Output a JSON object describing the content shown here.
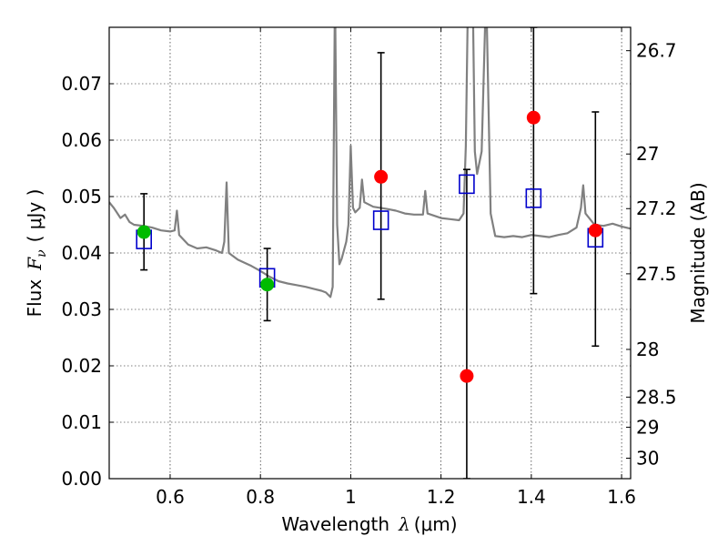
{
  "chart_data": {
    "type": "scatter",
    "xlabel": "Wavelength",
    "xlabel_symbol": "λ",
    "xlabel_unit": "(μm)",
    "ylabel": "Flux",
    "ylabel_symbol": "F",
    "ylabel_subscript": "ν",
    "ylabel_unit": "( μJy )",
    "y2label": "Magnitude (AB)",
    "xlim": [
      0.465,
      1.62
    ],
    "ylim": [
      0.0,
      0.08
    ],
    "x_ticks": [
      "0.6",
      "0.8",
      "1",
      "1.2",
      "1.4",
      "1.6"
    ],
    "y_ticks": [
      "0.00",
      "0.01",
      "0.02",
      "0.03",
      "0.04",
      "0.05",
      "0.06",
      "0.07"
    ],
    "y2_ticks": [
      "26.7",
      "27",
      "27.2",
      "27.5",
      "28",
      "28.5",
      "29",
      "30"
    ],
    "grid": true,
    "colors": {
      "spectrum": "#808080",
      "model_points": "#0000cc",
      "detections": "#00bb00",
      "nondetections": "#ff0000",
      "errorbars": "#000000"
    },
    "series": [
      {
        "kind": "spectrum",
        "points": [
          [
            0.465,
            0.049
          ],
          [
            0.475,
            0.048
          ],
          [
            0.49,
            0.0462
          ],
          [
            0.5,
            0.0468
          ],
          [
            0.51,
            0.0455
          ],
          [
            0.52,
            0.045
          ],
          [
            0.54,
            0.0448
          ],
          [
            0.56,
            0.0445
          ],
          [
            0.58,
            0.044
          ],
          [
            0.6,
            0.0438
          ],
          [
            0.61,
            0.044
          ],
          [
            0.615,
            0.0475
          ],
          [
            0.62,
            0.0432
          ],
          [
            0.64,
            0.0415
          ],
          [
            0.66,
            0.0408
          ],
          [
            0.68,
            0.041
          ],
          [
            0.7,
            0.0405
          ],
          [
            0.715,
            0.04
          ],
          [
            0.72,
            0.042
          ],
          [
            0.725,
            0.0525
          ],
          [
            0.73,
            0.04
          ],
          [
            0.75,
            0.0388
          ],
          [
            0.78,
            0.0377
          ],
          [
            0.8,
            0.0368
          ],
          [
            0.82,
            0.0358
          ],
          [
            0.84,
            0.035
          ],
          [
            0.86,
            0.0346
          ],
          [
            0.88,
            0.0343
          ],
          [
            0.9,
            0.034
          ],
          [
            0.92,
            0.0336
          ],
          [
            0.935,
            0.0333
          ],
          [
            0.945,
            0.033
          ],
          [
            0.955,
            0.0322
          ],
          [
            0.96,
            0.034
          ],
          [
            0.965,
            0.087
          ],
          [
            0.97,
            0.045
          ],
          [
            0.975,
            0.038
          ],
          [
            0.98,
            0.039
          ],
          [
            0.99,
            0.042
          ],
          [
            0.995,
            0.045
          ],
          [
            1.0,
            0.059
          ],
          [
            1.005,
            0.048
          ],
          [
            1.01,
            0.0472
          ],
          [
            1.02,
            0.048
          ],
          [
            1.025,
            0.053
          ],
          [
            1.03,
            0.049
          ],
          [
            1.05,
            0.0482
          ],
          [
            1.08,
            0.0478
          ],
          [
            1.1,
            0.0475
          ],
          [
            1.12,
            0.047
          ],
          [
            1.14,
            0.0468
          ],
          [
            1.16,
            0.0468
          ],
          [
            1.165,
            0.051
          ],
          [
            1.17,
            0.047
          ],
          [
            1.2,
            0.0462
          ],
          [
            1.22,
            0.046
          ],
          [
            1.24,
            0.0458
          ],
          [
            1.25,
            0.047
          ],
          [
            1.255,
            0.059
          ],
          [
            1.26,
            0.087
          ],
          [
            1.27,
            0.087
          ],
          [
            1.275,
            0.058
          ],
          [
            1.28,
            0.054
          ],
          [
            1.29,
            0.058
          ],
          [
            1.3,
            0.087
          ],
          [
            1.31,
            0.047
          ],
          [
            1.32,
            0.043
          ],
          [
            1.34,
            0.0428
          ],
          [
            1.36,
            0.043
          ],
          [
            1.38,
            0.0428
          ],
          [
            1.4,
            0.0432
          ],
          [
            1.42,
            0.043
          ],
          [
            1.44,
            0.0428
          ],
          [
            1.46,
            0.0432
          ],
          [
            1.48,
            0.0435
          ],
          [
            1.5,
            0.0445
          ],
          [
            1.51,
            0.048
          ],
          [
            1.515,
            0.052
          ],
          [
            1.52,
            0.047
          ],
          [
            1.54,
            0.045
          ],
          [
            1.56,
            0.0448
          ],
          [
            1.58,
            0.0452
          ],
          [
            1.6,
            0.0447
          ],
          [
            1.62,
            0.0443
          ]
        ]
      },
      {
        "kind": "model",
        "marker": "open-square",
        "points": [
          [
            0.542,
            0.0424
          ],
          [
            0.815,
            0.0356
          ],
          [
            1.067,
            0.0458
          ],
          [
            1.257,
            0.0522
          ],
          [
            1.405,
            0.0497
          ],
          [
            1.542,
            0.0427
          ]
        ]
      },
      {
        "kind": "detection",
        "marker": "filled-circle",
        "points": [
          [
            0.542,
            0.0437
          ],
          [
            0.815,
            0.0344
          ]
        ]
      },
      {
        "kind": "nondetection",
        "marker": "filled-circle",
        "points": [
          [
            1.067,
            0.0535
          ],
          [
            1.257,
            0.0182
          ],
          [
            1.405,
            0.064
          ],
          [
            1.542,
            0.044
          ]
        ]
      },
      {
        "kind": "errorbar",
        "bars": [
          [
            0.542,
            0.037,
            0.0505
          ],
          [
            0.815,
            0.028,
            0.0408
          ],
          [
            1.067,
            0.0318,
            0.0755
          ],
          [
            1.257,
            0.0,
            0.0548
          ],
          [
            1.405,
            0.0328,
            0.08
          ],
          [
            1.542,
            0.0235,
            0.065
          ]
        ]
      }
    ]
  }
}
